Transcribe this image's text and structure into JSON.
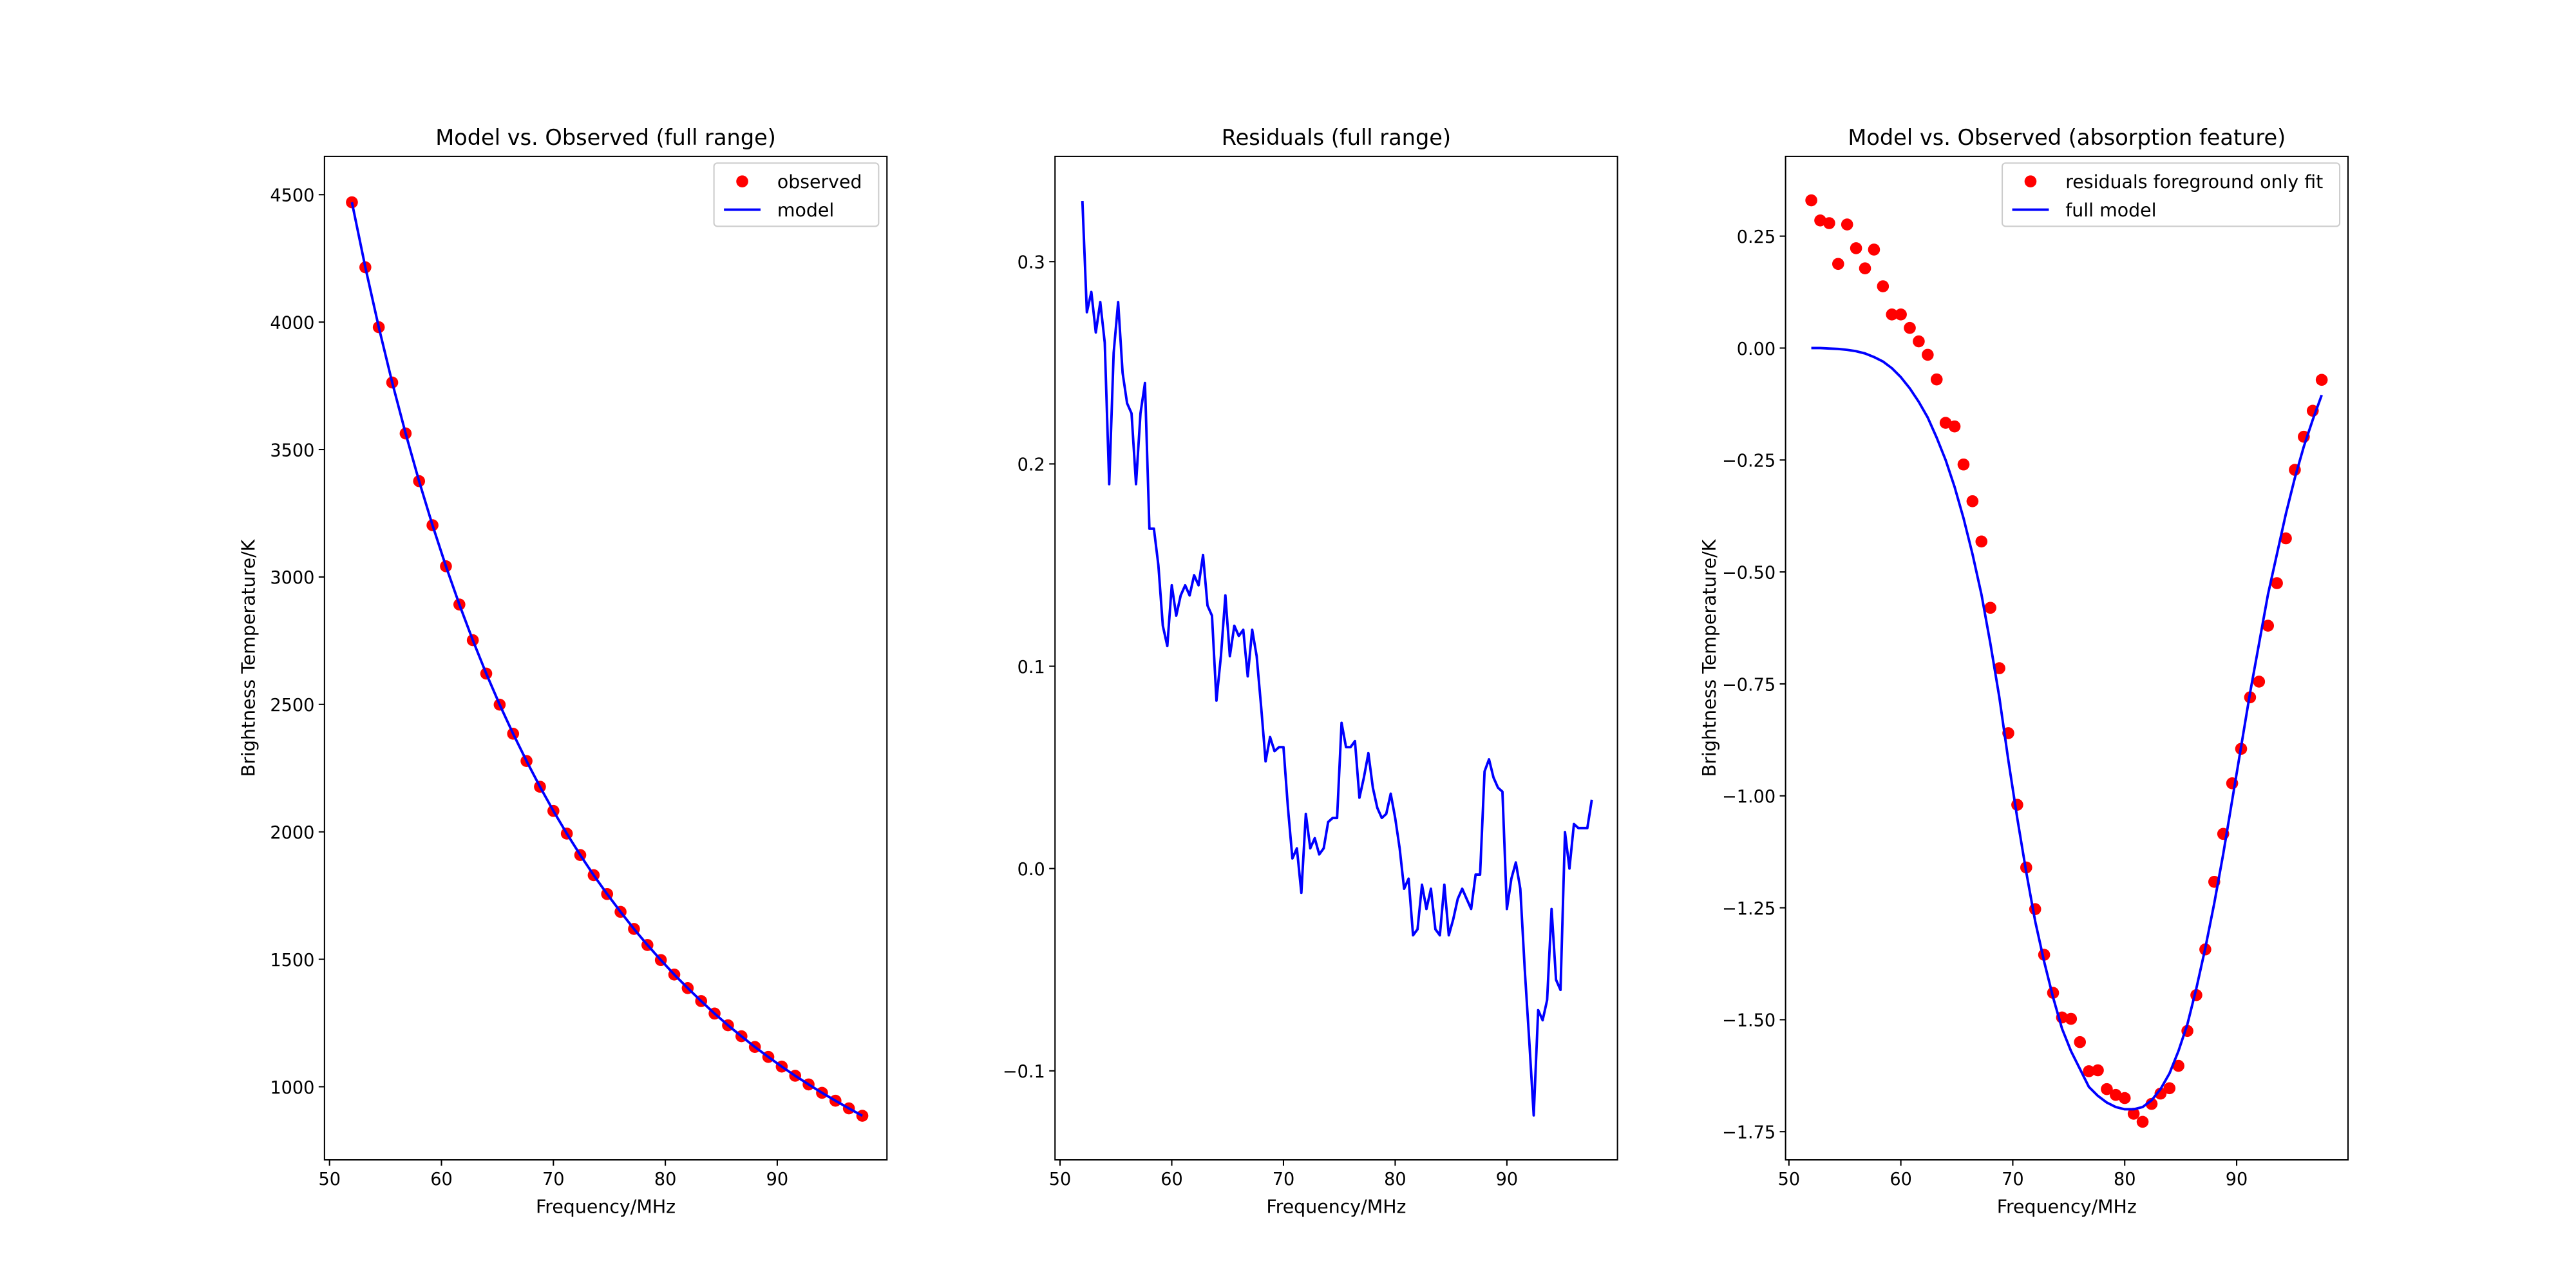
{
  "chart_data": [
    {
      "type": "line",
      "title": "Model vs. Observed (full range)",
      "xlabel": "Frequency/MHz",
      "ylabel": "Brightness Temperature/K",
      "x": [
        52,
        53.2,
        54.4,
        55.6,
        56.8,
        58,
        59.2,
        60.4,
        61.6,
        62.8,
        64,
        65.2,
        66.4,
        67.6,
        68.8,
        70,
        71.2,
        72.4,
        73.6,
        74.8,
        76,
        77.2,
        78.4,
        79.6,
        80.8,
        82,
        83.2,
        84.4,
        85.6,
        86.8,
        88,
        89.2,
        90.4,
        91.6,
        92.8,
        94,
        95.2,
        96.4,
        97.6
      ],
      "series": [
        {
          "name": "observed",
          "color": "#ff0000",
          "marker": "o",
          "values": [
            4470,
            4215,
            3980,
            3763,
            3563,
            3376,
            3203,
            3042,
            2892,
            2752,
            2621,
            2499,
            2385,
            2278,
            2177,
            2082,
            1993,
            1909,
            1830,
            1756,
            1686,
            1619,
            1556,
            1497,
            1440,
            1387,
            1336,
            1287,
            1241,
            1198,
            1156,
            1117,
            1079,
            1043,
            1009,
            976,
            945,
            915,
            886
          ]
        },
        {
          "name": "model",
          "color": "#0000ff",
          "linestyle": "-",
          "values": [
            4470,
            4215,
            3980,
            3763,
            3563,
            3376,
            3203,
            3042,
            2892,
            2752,
            2621,
            2499,
            2385,
            2278,
            2177,
            2082,
            1993,
            1909,
            1830,
            1756,
            1686,
            1619,
            1556,
            1497,
            1440,
            1387,
            1336,
            1287,
            1241,
            1198,
            1156,
            1117,
            1079,
            1043,
            1009,
            976,
            945,
            915,
            886
          ]
        }
      ],
      "xlim": [
        49.55,
        99.8
      ],
      "ylim": [
        713,
        4650
      ],
      "xticks": [
        50,
        60,
        70,
        80,
        90
      ],
      "yticks": [
        1000,
        1500,
        2000,
        2500,
        3000,
        3500,
        4000,
        4500
      ],
      "legend": "upper right"
    },
    {
      "type": "line",
      "title": "Residuals (full range)",
      "xlabel": "Frequency/MHz",
      "x": [
        52,
        52.4,
        52.8,
        53.2,
        53.6,
        54,
        54.4,
        54.8,
        55.2,
        55.6,
        56,
        56.4,
        56.8,
        57.2,
        57.6,
        58,
        58.4,
        58.8,
        59.2,
        59.6,
        60,
        60.4,
        60.8,
        61.2,
        61.6,
        62,
        62.4,
        62.8,
        63.2,
        63.6,
        64,
        64.4,
        64.8,
        65.2,
        65.6,
        66,
        66.4,
        66.8,
        67.2,
        67.6,
        68,
        68.4,
        68.8,
        69.2,
        69.6,
        70,
        70.4,
        70.8,
        71.2,
        71.6,
        72,
        72.4,
        72.8,
        73.2,
        73.6,
        74,
        74.4,
        74.8,
        75.2,
        75.6,
        76,
        76.4,
        76.8,
        77.2,
        77.6,
        78,
        78.4,
        78.8,
        79.2,
        79.6,
        80,
        80.4,
        80.8,
        81.2,
        81.6,
        82,
        82.4,
        82.8,
        83.2,
        83.6,
        84,
        84.4,
        84.8,
        85.2,
        85.6,
        86,
        86.4,
        86.8,
        87.2,
        87.6,
        88,
        88.4,
        88.8,
        89.2,
        89.6,
        90,
        90.4,
        90.8,
        91.2,
        91.6,
        92,
        92.4,
        92.8,
        93.2,
        93.6,
        94,
        94.4,
        94.8,
        95.2,
        95.6,
        96,
        96.4,
        96.8,
        97.2,
        97.6
      ],
      "series": [
        {
          "color": "#0000ff",
          "linestyle": "-",
          "values": [
            0.33,
            0.275,
            0.285,
            0.265,
            0.28,
            0.26,
            0.19,
            0.255,
            0.28,
            0.245,
            0.23,
            0.225,
            0.19,
            0.225,
            0.24,
            0.168,
            0.168,
            0.15,
            0.12,
            0.11,
            0.14,
            0.125,
            0.135,
            0.14,
            0.135,
            0.145,
            0.14,
            0.155,
            0.13,
            0.125,
            0.083,
            0.105,
            0.135,
            0.105,
            0.12,
            0.115,
            0.118,
            0.095,
            0.118,
            0.105,
            0.08,
            0.053,
            0.065,
            0.058,
            0.06,
            0.06,
            0.03,
            0.005,
            0.01,
            -0.012,
            0.027,
            0.01,
            0.015,
            0.007,
            0.01,
            0.023,
            0.025,
            0.025,
            0.072,
            0.06,
            0.06,
            0.063,
            0.035,
            0.045,
            0.057,
            0.04,
            0.03,
            0.025,
            0.027,
            0.037,
            0.025,
            0.01,
            -0.01,
            -0.005,
            -0.033,
            -0.03,
            -0.008,
            -0.02,
            -0.01,
            -0.03,
            -0.033,
            -0.008,
            -0.033,
            -0.025,
            -0.015,
            -0.01,
            -0.015,
            -0.02,
            -0.003,
            -0.003,
            0.048,
            0.054,
            0.045,
            0.04,
            0.038,
            -0.02,
            -0.005,
            0.003,
            -0.01,
            -0.05,
            -0.085,
            -0.122,
            -0.07,
            -0.075,
            -0.065,
            -0.02,
            -0.055,
            -0.06,
            0.018,
            0.0,
            0.022,
            0.02,
            0.02,
            0.02,
            0.034
          ]
        }
      ],
      "xlim": [
        49.55,
        99.9
      ],
      "ylim": [
        -0.144,
        0.352
      ],
      "xticks": [
        50,
        60,
        70,
        80,
        90
      ],
      "yticks": [
        {
          "value": -0.1,
          "label": "−0.1"
        },
        {
          "value": 0,
          "label": "0.0"
        },
        0.1,
        0.2,
        0.3
      ]
    },
    {
      "type": "line",
      "title": "Model vs. Observed (absorption feature)",
      "xlabel": "Frequency/MHz",
      "ylabel": "Brightness Temperature/K",
      "x": [
        52,
        52.8,
        53.6,
        54.4,
        55.2,
        56,
        56.8,
        57.6,
        58.4,
        59.2,
        60,
        60.8,
        61.6,
        62.4,
        63.2,
        64,
        64.8,
        65.6,
        66.4,
        67.2,
        68,
        68.8,
        69.6,
        70.4,
        71.2,
        72,
        72.8,
        73.6,
        74.4,
        75.2,
        76,
        76.8,
        77.6,
        78.4,
        79.2,
        80,
        80.8,
        81.6,
        82.4,
        83.2,
        84,
        84.8,
        85.6,
        86.4,
        87.2,
        88,
        88.8,
        89.6,
        90.4,
        91.2,
        92,
        92.8,
        93.6,
        94.4,
        95.2,
        96,
        96.8,
        97.6
      ],
      "series": [
        {
          "name": "residuals foreground only fit",
          "color": "#ff0000",
          "marker": "o",
          "values": [
            0.33,
            0.285,
            0.279,
            0.188,
            0.276,
            0.223,
            0.178,
            0.22,
            0.138,
            0.075,
            0.075,
            0.045,
            0.015,
            -0.015,
            -0.07,
            -0.167,
            -0.175,
            -0.26,
            -0.342,
            -0.432,
            -0.58,
            -0.715,
            -0.86,
            -1.02,
            -1.16,
            -1.253,
            -1.355,
            -1.44,
            -1.495,
            -1.498,
            -1.55,
            -1.615,
            -1.613,
            -1.655,
            -1.668,
            -1.675,
            -1.71,
            -1.728,
            -1.688,
            -1.665,
            -1.653,
            -1.603,
            -1.525,
            -1.445,
            -1.343,
            -1.192,
            -1.085,
            -0.972,
            -0.895,
            -0.78,
            -0.745,
            -0.62,
            -0.525,
            -0.425,
            -0.272,
            -0.198,
            -0.14,
            -0.071
          ]
        },
        {
          "name": "full model",
          "color": "#0000ff",
          "linestyle": "-",
          "values": [
            0,
            0,
            -0.001,
            -0.002,
            -0.004,
            -0.007,
            -0.012,
            -0.02,
            -0.03,
            -0.045,
            -0.065,
            -0.09,
            -0.12,
            -0.155,
            -0.2,
            -0.25,
            -0.31,
            -0.38,
            -0.46,
            -0.55,
            -0.66,
            -0.78,
            -0.92,
            -1.05,
            -1.17,
            -1.28,
            -1.37,
            -1.45,
            -1.52,
            -1.57,
            -1.61,
            -1.65,
            -1.67,
            -1.685,
            -1.695,
            -1.7,
            -1.7,
            -1.695,
            -1.68,
            -1.655,
            -1.62,
            -1.57,
            -1.51,
            -1.43,
            -1.34,
            -1.24,
            -1.13,
            -1.01,
            -0.89,
            -0.77,
            -0.66,
            -0.55,
            -0.46,
            -0.37,
            -0.29,
            -0.22,
            -0.16,
            -0.105
          ]
        }
      ],
      "xlim": [
        49.7,
        99.95
      ],
      "ylim": [
        -1.813,
        0.428
      ],
      "xticks": [
        50,
        60,
        70,
        80,
        90
      ],
      "yticks": [
        {
          "value": -1.75,
          "label": "−1.75"
        },
        {
          "value": -1.5,
          "label": "−1.50"
        },
        {
          "value": -1.25,
          "label": "−1.25"
        },
        {
          "value": -1,
          "label": "−1.00"
        },
        {
          "value": -0.75,
          "label": "−0.75"
        },
        {
          "value": -0.5,
          "label": "−0.50"
        },
        {
          "value": -0.25,
          "label": "−0.25"
        },
        {
          "value": 0,
          "label": "0.00"
        },
        0.25
      ],
      "legend": "upper right"
    }
  ]
}
